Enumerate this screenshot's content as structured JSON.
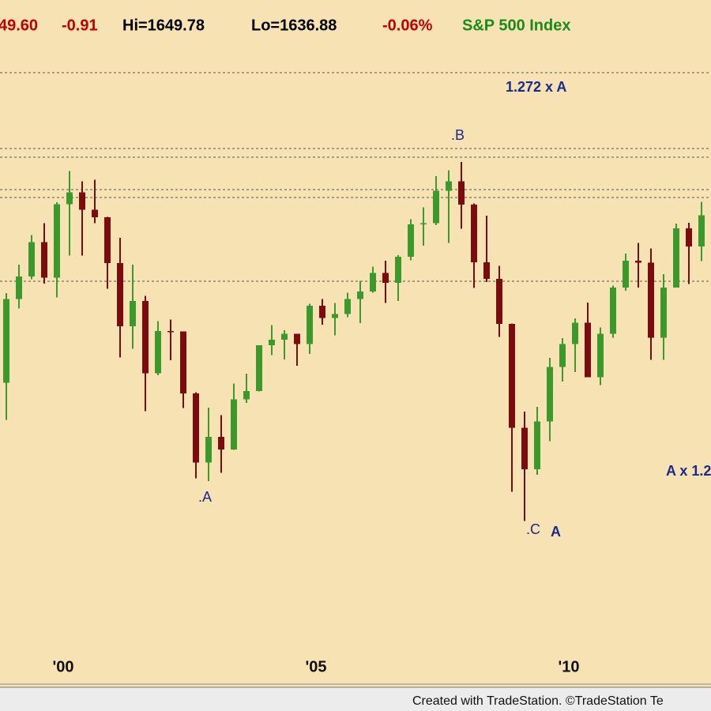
{
  "chart_data": {
    "type": "candlestick",
    "header": [
      {
        "text": "49.60",
        "color": "#c00000"
      },
      {
        "text": "-0.91",
        "color": "#c00000"
      },
      {
        "text": "Hi=1649.78",
        "color": "#000000"
      },
      {
        "text": "Lo=1636.88",
        "color": "#000000"
      },
      {
        "text": "-0.06%",
        "color": "#c00000"
      },
      {
        "text": "S&P 500 Index",
        "color": "#1a8a1a"
      }
    ],
    "categories": [
      null,
      null,
      null,
      null,
      null,
      "'00",
      null,
      null,
      null,
      null,
      null,
      null,
      null,
      null,
      null,
      null,
      null,
      null,
      null,
      null,
      null,
      null,
      null,
      null,
      null,
      "'05",
      null,
      null,
      null,
      null,
      null,
      null,
      null,
      null,
      null,
      null,
      null,
      null,
      null,
      null,
      null,
      null,
      null,
      null,
      null,
      "'10",
      null,
      null,
      null,
      null,
      null,
      null,
      null,
      null,
      null,
      null
    ],
    "open": [
      1017,
      1229,
      1286,
      1373,
      1283,
      1469,
      1499,
      1455,
      1436,
      1320,
      1160,
      1224,
      1041,
      1148,
      1147,
      990,
      815,
      880,
      848,
      975,
      996,
      1112,
      1126,
      1141,
      1115,
      1212,
      1181,
      1191,
      1229,
      1248,
      1295,
      1270,
      1336,
      1418,
      1421,
      1503,
      1527,
      1468,
      1322,
      1280,
      1166,
      903,
      798,
      919,
      1057,
      1115,
      1169,
      1031,
      1141,
      1258,
      1326,
      1321,
      1131,
      1258,
      1408,
      1362
    ],
    "high": [
      1244,
      1316,
      1391,
      1421,
      1474,
      1553,
      1527,
      1531,
      1437,
      1384,
      1316,
      1237,
      1173,
      1177,
      1147,
      993,
      954,
      935,
      1015,
      1040,
      1112,
      1163,
      1150,
      1141,
      1217,
      1229,
      1219,
      1245,
      1275,
      1311,
      1326,
      1340,
      1431,
      1461,
      1540,
      1555,
      1576,
      1471,
      1440,
      1313,
      1167,
      944,
      956,
      1080,
      1130,
      1180,
      1220,
      1157,
      1263,
      1344,
      1371,
      1357,
      1292,
      1420,
      1422,
      1475
    ],
    "low": [
      923,
      1205,
      1279,
      1268,
      1233,
      1339,
      1339,
      1421,
      1255,
      1081,
      1103,
      945,
      1036,
      1074,
      953,
      775,
      768,
      789,
      847,
      966,
      995,
      1087,
      1076,
      1060,
      1090,
      1164,
      1137,
      1183,
      1168,
      1245,
      1219,
      1224,
      1327,
      1364,
      1416,
      1371,
      1407,
      1257,
      1272,
      1133,
      741,
      667,
      784,
      869,
      1020,
      1044,
      1031,
      1011,
      1131,
      1250,
      1258,
      1075,
      1075,
      1258,
      1267,
      1325
    ],
    "close": [
      1229,
      1286,
      1373,
      1283,
      1469,
      1499,
      1455,
      1436,
      1320,
      1160,
      1224,
      1041,
      1148,
      1147,
      990,
      815,
      880,
      848,
      975,
      996,
      1112,
      1126,
      1141,
      1115,
      1212,
      1181,
      1191,
      1229,
      1248,
      1295,
      1270,
      1336,
      1418,
      1421,
      1503,
      1527,
      1468,
      1322,
      1280,
      1166,
      903,
      798,
      919,
      1057,
      1115,
      1169,
      1031,
      1141,
      1258,
      1326,
      1321,
      1131,
      1258,
      1408,
      1362,
      1441
    ],
    "up_color": "#3c9a2c",
    "down_color": "#7a0c10",
    "ylim": [
      326,
      1942
    ],
    "levels": [
      1802,
      1610,
      1588,
      1506,
      1486,
      1274
    ],
    "annotations": [
      "1.272 x A",
      ".B",
      ".A",
      ".C",
      "A",
      "A x 1.2"
    ],
    "footer": "Created with TradeStation. ©TradeStation Te"
  }
}
